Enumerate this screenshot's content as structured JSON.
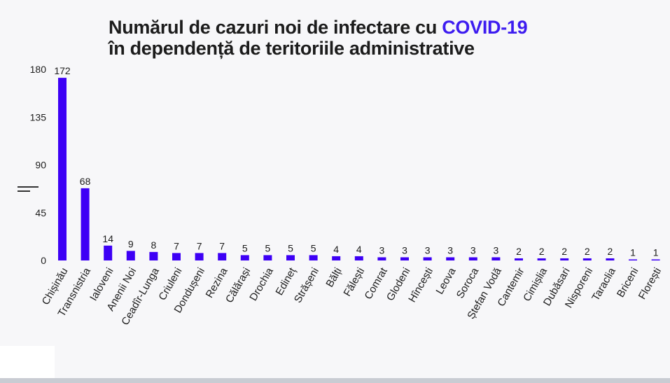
{
  "title": {
    "line1_prefix": "Numărul de cazuri noi de infectare cu ",
    "line1_accent": "COVID-19",
    "line2": "în dependență de teritoriile administrative"
  },
  "colors": {
    "bar": "#3d00f5",
    "accent": "#3d1cf0",
    "text": "#1c1c1c"
  },
  "chart_data": {
    "type": "bar",
    "categories": [
      "Chișinău",
      "Transnistria",
      "Ialoveni",
      "Anenii Noi",
      "Ceadîr-Lunga",
      "Criuleni",
      "Dondușeni",
      "Rezina",
      "Călărași",
      "Drochia",
      "Edineț",
      "Strășeni",
      "Bălți",
      "Fălești",
      "Comrat",
      "Glodeni",
      "Hîncești",
      "Leova",
      "Soroca",
      "Ștefan Vodă",
      "Cantemir",
      "Cimișlia",
      "Dubăsari",
      "Nisporeni",
      "Taraclia",
      "Briceni",
      "Florești"
    ],
    "values": [
      172,
      68,
      14,
      9,
      8,
      7,
      7,
      7,
      5,
      5,
      5,
      5,
      4,
      4,
      3,
      3,
      3,
      3,
      3,
      3,
      2,
      2,
      2,
      2,
      2,
      1,
      1
    ],
    "yticks": [
      0,
      45,
      90,
      135,
      180
    ],
    "ylim": [
      0,
      180
    ],
    "grid": false,
    "title": "Numărul de cazuri noi de infectare cu COVID-19 în dependență de teritoriile administrative"
  }
}
